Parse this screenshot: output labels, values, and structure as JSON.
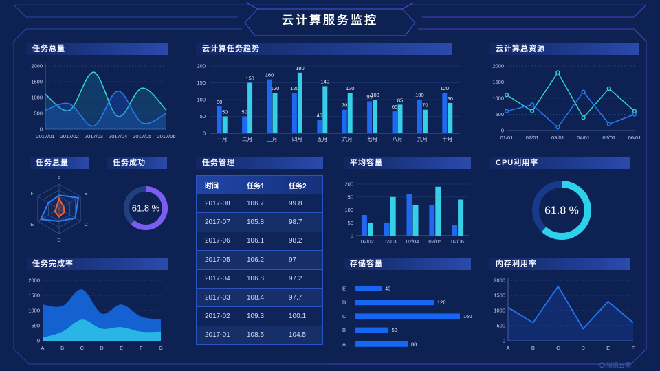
{
  "header": {
    "title": "云计算服务监控"
  },
  "footer": {
    "brand": "腾讯云图"
  },
  "colors": {
    "blue": "#2979f2",
    "cyan_line": "#35d3cc",
    "cyan_bar": "#35cfe8",
    "purple": "#7c5cf2",
    "orange": "#ff5a2b",
    "bar_blue": "#1f68f0",
    "hbar_blue": "#1766f2",
    "gauge_track_purple": "#21407e",
    "gauge_track_cyan": "#173a8a",
    "background": "#0d2153"
  },
  "panels": [
    {
      "title": "任务总量"
    },
    {
      "title": "云计算任务趋势"
    },
    {
      "title": "云计算总资源"
    },
    {
      "title": "任务总量"
    },
    {
      "title": "任务成功"
    },
    {
      "title": "任务管理"
    },
    {
      "title": "平均容量"
    },
    {
      "title": "CPU利用率"
    },
    {
      "title": "任务完成率"
    },
    {
      "title": "存储容量"
    },
    {
      "title": "内存利用率"
    }
  ],
  "chart_data": [
    {
      "el": "c0",
      "type": "area-spline",
      "title": "任务总量",
      "x": [
        "2017/01",
        "2017/02",
        "2017/03",
        "2017/04",
        "2017/05",
        "2017/06"
      ],
      "series": [
        {
          "name": "cyan",
          "color": "#35d3cc",
          "values": [
            1100,
            600,
            1800,
            400,
            1300,
            600
          ]
        },
        {
          "name": "blue",
          "color": "#2979f2",
          "values": [
            600,
            800,
            100,
            1200,
            200,
            500
          ]
        }
      ],
      "ylim": [
        0,
        2000
      ],
      "yticks": [
        0,
        500,
        1000,
        1500,
        2000
      ]
    },
    {
      "el": "c1",
      "type": "bar",
      "title": "云计算任务趋势",
      "categories": [
        "一月",
        "二月",
        "三月",
        "四月",
        "五月",
        "六月",
        "七月",
        "八月",
        "九月",
        "十月"
      ],
      "series": [
        {
          "name": "任务1",
          "color": "#1f68f0",
          "values": [
            80,
            50,
            160,
            120,
            40,
            70,
            95,
            65,
            100,
            120
          ]
        },
        {
          "name": "任务2",
          "color": "#35cfe8",
          "values": [
            50,
            150,
            120,
            180,
            140,
            120,
            100,
            85,
            70,
            90
          ]
        }
      ],
      "ylim": [
        0,
        200
      ],
      "yticks": [
        0,
        50,
        100,
        150,
        200
      ],
      "show_labels": true
    },
    {
      "el": "c2",
      "type": "line-marker",
      "title": "云计算总资源",
      "x": [
        "01/01",
        "02/01",
        "03/01",
        "04/01",
        "05/01",
        "06/01"
      ],
      "series": [
        {
          "name": "cyan",
          "color": "#35d3cc",
          "values": [
            1100,
            600,
            1800,
            400,
            1300,
            600
          ]
        },
        {
          "name": "blue",
          "color": "#2979f2",
          "values": [
            600,
            800,
            100,
            1200,
            200,
            500
          ]
        }
      ],
      "ylim": [
        0,
        2000
      ],
      "yticks": [
        0,
        500,
        1000,
        1500,
        2000
      ]
    },
    {
      "el": "c3",
      "type": "radar",
      "title": "任务总量",
      "axes": [
        "A",
        "B",
        "C",
        "D",
        "E",
        "F"
      ],
      "series": [
        {
          "name": "blue",
          "color": "#2f7df5",
          "values": [
            55,
            90,
            75,
            50,
            85,
            50
          ]
        },
        {
          "name": "orange",
          "color": "#ff5a2b",
          "values": [
            42,
            20,
            25,
            32,
            20,
            12
          ]
        }
      ],
      "max": 100
    },
    {
      "el": "c4",
      "type": "gauge",
      "title": "任务成功",
      "value": 61.8,
      "label": "61.8 %",
      "color": "#7c5cf2",
      "track": "#21407e"
    },
    {
      "el": "tbl",
      "type": "table",
      "title": "任务管理",
      "headers": [
        "时间",
        "任务1",
        "任务2"
      ],
      "rows": [
        [
          "2017-08",
          "106.7",
          "99.8"
        ],
        [
          "2017-07",
          "105.8",
          "98.7"
        ],
        [
          "2017-06",
          "106.1",
          "98.2"
        ],
        [
          "2017-05",
          "106.2",
          "97"
        ],
        [
          "2017-04",
          "106.8",
          "97.2"
        ],
        [
          "2017-03",
          "108.4",
          "97.7"
        ],
        [
          "2017-02",
          "109.3",
          "100.1"
        ],
        [
          "2017-01",
          "108.5",
          "104.5"
        ]
      ]
    },
    {
      "el": "c6",
      "type": "bar",
      "title": "平均容量",
      "categories": [
        "02/02",
        "02/03",
        "02/04",
        "02/05",
        "02/06"
      ],
      "series": [
        {
          "name": "blue",
          "color": "#1f68f0",
          "values": [
            80,
            50,
            160,
            120,
            40
          ]
        },
        {
          "name": "cyan",
          "color": "#35cfe8",
          "values": [
            50,
            150,
            120,
            190,
            140
          ]
        }
      ],
      "ylim": [
        0,
        200
      ],
      "yticks": [
        0,
        50,
        100,
        150,
        200
      ],
      "show_labels": false
    },
    {
      "el": "c7",
      "type": "gauge",
      "title": "CPU利用率",
      "value": 61.8,
      "label": "61.8 %",
      "color": "#2bd2ea",
      "track": "#173a8a"
    },
    {
      "el": "c8",
      "type": "stacked-area",
      "title": "任务完成率",
      "x": [
        "A",
        "B",
        "C",
        "D",
        "E",
        "F",
        "G"
      ],
      "series": [
        {
          "name": "blue-total",
          "color": "#1565d8",
          "values": [
            1200,
            1150,
            1700,
            900,
            1200,
            800,
            700
          ]
        },
        {
          "name": "cyan",
          "color": "#2ab9e6",
          "values": [
            100,
            300,
            700,
            400,
            450,
            300,
            300
          ]
        }
      ],
      "ylim": [
        0,
        2000
      ],
      "yticks": [
        0,
        500,
        1000,
        1500,
        2000
      ]
    },
    {
      "el": "c9",
      "type": "hbar",
      "title": "存储容量",
      "categories": [
        "E",
        "D",
        "C",
        "B",
        "A"
      ],
      "values": [
        40,
        120,
        160,
        50,
        80
      ],
      "color": "#1766f2",
      "xmax": 180
    },
    {
      "el": "c10",
      "type": "line-plain",
      "title": "内存利用率",
      "x": [
        "A",
        "B",
        "C",
        "D",
        "E",
        "F"
      ],
      "series": [
        {
          "name": "blue",
          "color": "#2476f0",
          "values": [
            1100,
            600,
            1800,
            400,
            1300,
            600
          ]
        }
      ],
      "ylim": [
        0,
        2000
      ],
      "yticks": [
        0,
        500,
        1000,
        1500,
        2000
      ]
    }
  ]
}
